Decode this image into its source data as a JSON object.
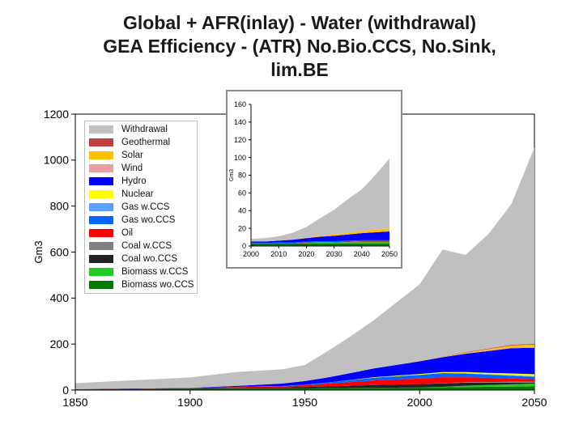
{
  "title_lines": [
    "Global + AFR(inlay) - Water (withdrawal)",
    "GEA Efficiency - (ATR) No.Bio.CCS, No.Sink,",
    "lim.BE"
  ],
  "chart_data": [
    {
      "type": "area",
      "stacked": true,
      "title": "Global + AFR(inlay) - Water (withdrawal)",
      "xlabel": "",
      "ylabel": "Gm3",
      "xlim": [
        1850,
        2050
      ],
      "ylim": [
        0,
        1200
      ],
      "xticks": [
        1850,
        1900,
        1950,
        2000,
        2050
      ],
      "yticks": [
        0,
        200,
        400,
        600,
        800,
        1000,
        1200
      ],
      "x": [
        1850,
        1900,
        1920,
        1940,
        1950,
        1960,
        1970,
        1980,
        2000,
        2010,
        2020,
        2030,
        2040,
        2050
      ],
      "series": [
        {
          "name": "Biomass wo.CCS",
          "color": "#007a00",
          "values": [
            3,
            5,
            6,
            6,
            7,
            8,
            9,
            10,
            12,
            12,
            13,
            14,
            15,
            16
          ]
        },
        {
          "name": "Biomass w.CCS",
          "color": "#22cc22",
          "values": [
            0,
            0,
            0,
            0,
            0,
            0,
            0,
            0,
            0,
            2,
            6,
            8,
            10,
            12
          ]
        },
        {
          "name": "Coal wo.CCS",
          "color": "#222222",
          "values": [
            1,
            3,
            4,
            5,
            6,
            8,
            10,
            12,
            14,
            15,
            13,
            10,
            7,
            4
          ]
        },
        {
          "name": "Coal w.CCS",
          "color": "#808080",
          "values": [
            0,
            0,
            0,
            0,
            0,
            0,
            0,
            0,
            0,
            1,
            2,
            3,
            4,
            5
          ]
        },
        {
          "name": "Oil",
          "color": "#ff0000",
          "values": [
            0,
            1,
            3,
            5,
            8,
            12,
            16,
            20,
            24,
            26,
            22,
            18,
            14,
            10
          ]
        },
        {
          "name": "Gas wo.CCS",
          "color": "#0066ff",
          "values": [
            0,
            0,
            1,
            2,
            3,
            5,
            8,
            12,
            16,
            18,
            16,
            14,
            12,
            10
          ]
        },
        {
          "name": "Gas w.CCS",
          "color": "#5aa0ff",
          "values": [
            0,
            0,
            0,
            0,
            0,
            0,
            0,
            0,
            0,
            0,
            1,
            2,
            3,
            4
          ]
        },
        {
          "name": "Nuclear",
          "color": "#ffff00",
          "values": [
            0,
            0,
            0,
            0,
            0,
            0,
            1,
            2,
            4,
            4,
            5,
            6,
            7,
            8
          ]
        },
        {
          "name": "Hydro",
          "color": "#0000ff",
          "values": [
            0,
            1,
            4,
            10,
            15,
            22,
            30,
            38,
            55,
            65,
            80,
            95,
            110,
            115
          ]
        },
        {
          "name": "Wind",
          "color": "#e8a0a0",
          "values": [
            0,
            0,
            0,
            0,
            0,
            0,
            0,
            0,
            0,
            1,
            2,
            3,
            4,
            4
          ]
        },
        {
          "name": "Solar",
          "color": "#ffc000",
          "values": [
            0,
            0,
            0,
            0,
            0,
            0,
            0,
            0,
            0,
            1,
            3,
            5,
            8,
            10
          ]
        },
        {
          "name": "Geothermal",
          "color": "#c04040",
          "values": [
            0,
            0,
            0,
            0,
            0,
            0,
            0,
            0,
            1,
            1,
            2,
            3,
            3,
            3
          ]
        },
        {
          "name": "Withdrawal",
          "color": "#c0c0c0",
          "values": [
            26,
            45,
            60,
            62,
            70,
            115,
            160,
            210,
            334,
            465,
            423,
            498,
            612,
            854
          ]
        }
      ]
    },
    {
      "type": "area",
      "stacked": true,
      "title": "",
      "xlabel": "",
      "ylabel": "Gm3",
      "xlim": [
        2000,
        2050
      ],
      "ylim": [
        0,
        160
      ],
      "xticks": [
        2000,
        2010,
        2020,
        2030,
        2040,
        2050
      ],
      "yticks": [
        0,
        20,
        40,
        60,
        80,
        100,
        120,
        140,
        160
      ],
      "x": [
        2000,
        2005,
        2010,
        2015,
        2020,
        2025,
        2030,
        2035,
        2040,
        2045,
        2050
      ],
      "series": [
        {
          "name": "Biomass wo.CCS",
          "color": "#007a00",
          "values": [
            3,
            3,
            3,
            3,
            3,
            3,
            3,
            3,
            3,
            3,
            3
          ]
        },
        {
          "name": "Biomass w.CCS",
          "color": "#22cc22",
          "values": [
            0,
            0,
            0,
            0,
            0.5,
            1,
            1,
            1.5,
            2,
            2,
            2
          ]
        },
        {
          "name": "Oil",
          "color": "#ff0000",
          "values": [
            0,
            0,
            0,
            0,
            0.5,
            0.5,
            0.5,
            0.5,
            0.5,
            0.5,
            0.5
          ]
        },
        {
          "name": "Gas wo.CCS",
          "color": "#0066ff",
          "values": [
            0.5,
            0.5,
            1,
            1,
            1,
            1,
            1,
            1,
            1,
            1,
            1
          ]
        },
        {
          "name": "Hydro",
          "color": "#0000ff",
          "values": [
            1.5,
            1.5,
            2,
            3,
            4,
            5,
            6,
            7,
            8,
            9,
            10
          ]
        },
        {
          "name": "Solar",
          "color": "#ffc000",
          "values": [
            0,
            0,
            0,
            0,
            0.5,
            1,
            1.5,
            2,
            2.5,
            3,
            3.5
          ]
        },
        {
          "name": "Withdrawal",
          "color": "#c0c0c0",
          "values": [
            3,
            4,
            5,
            8,
            12,
            20,
            28,
            38,
            47,
            62,
            79
          ]
        }
      ]
    }
  ],
  "legend": [
    {
      "label": "Withdrawal",
      "color": "#c0c0c0"
    },
    {
      "label": "Geothermal",
      "color": "#c04040"
    },
    {
      "label": "Solar",
      "color": "#ffc000"
    },
    {
      "label": "Wind",
      "color": "#e8a0a0"
    },
    {
      "label": "Hydro",
      "color": "#0000ff"
    },
    {
      "label": "Nuclear",
      "color": "#ffff00"
    },
    {
      "label": "Gas w.CCS",
      "color": "#5aa0ff"
    },
    {
      "label": "Gas wo.CCS",
      "color": "#0066ff"
    },
    {
      "label": "Oil",
      "color": "#ff0000"
    },
    {
      "label": "Coal w.CCS",
      "color": "#808080"
    },
    {
      "label": "Coal wo.CCS",
      "color": "#222222"
    },
    {
      "label": "Biomass w.CCS",
      "color": "#22cc22"
    },
    {
      "label": "Biomass wo.CCS",
      "color": "#007a00"
    }
  ]
}
